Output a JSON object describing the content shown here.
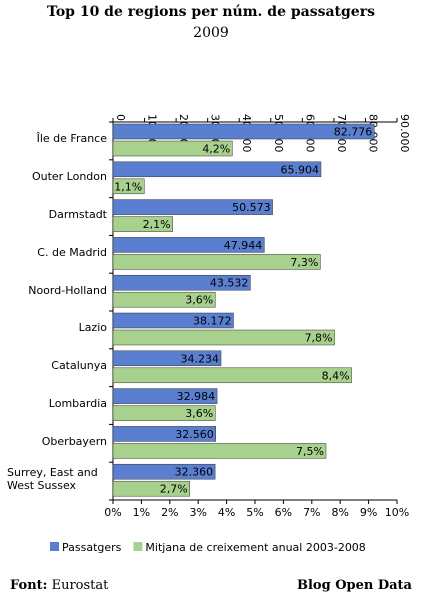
{
  "chart_data": {
    "type": "bar",
    "orientation": "horizontal",
    "title": "Top 10 de regions per núm. de passatgers",
    "subtitle": "2009",
    "categories": [
      "Île de France",
      "Outer London",
      "Darmstadt",
      "C. de Madrid",
      "Noord-Holland",
      "Lazio",
      "Catalunya",
      "Lombardia",
      "Oberbayern",
      "Surrey, East and West Sussex"
    ],
    "series": [
      {
        "name": "Passatgers",
        "color": "#5b7fd0",
        "axis": "x",
        "values": [
          82776,
          65904,
          50573,
          47944,
          43532,
          38172,
          34234,
          32984,
          32560,
          32360
        ],
        "value_labels": [
          "82.776",
          "65.904",
          "50.573",
          "47.944",
          "43.532",
          "38.172",
          "34.234",
          "32.984",
          "32.560",
          "32.360"
        ]
      },
      {
        "name": "Mitjana de creixement anual 2003-2008",
        "color": "#a9d18e",
        "axis": "x2",
        "values": [
          4.2,
          1.1,
          2.1,
          7.3,
          3.6,
          7.8,
          8.4,
          3.6,
          7.5,
          2.7
        ],
        "value_labels": [
          "4,2%",
          "1,1%",
          "2,1%",
          "7,3%",
          "3,6%",
          "7,8%",
          "8,4%",
          "3,6%",
          "7,5%",
          "2,7%"
        ]
      }
    ],
    "xlim": [
      0,
      90000
    ],
    "xticks": [
      0,
      {
        "value": 10000,
        "label": "10.000"
      },
      {
        "value": 20000,
        "label": "20.000"
      },
      {
        "value": 30000,
        "label": "30.000"
      },
      {
        "value": 40000,
        "label": "40.000"
      },
      {
        "value": 50000,
        "label": "50.000"
      },
      {
        "value": 60000,
        "label": "60.000"
      },
      {
        "value": 70000,
        "label": "70.000"
      },
      {
        "value": 80000,
        "label": "80.000"
      },
      {
        "value": 90000,
        "label": "90.000"
      }
    ],
    "x2lim": [
      0,
      10
    ],
    "x2ticks": [
      {
        "value": 0,
        "label": "0%"
      },
      {
        "value": 1,
        "label": "1%"
      },
      {
        "value": 2,
        "label": "2%"
      },
      {
        "value": 3,
        "label": "3%"
      },
      {
        "value": 4,
        "label": "4%"
      },
      {
        "value": 5,
        "label": "5%"
      },
      {
        "value": 6,
        "label": "6%"
      },
      {
        "value": 7,
        "label": "7%"
      },
      {
        "value": 8,
        "label": "8%"
      },
      {
        "value": 9,
        "label": "9%"
      },
      {
        "value": 10,
        "label": "10%"
      }
    ],
    "grid": false,
    "legend": "bottom",
    "source_label": "Font:",
    "source": "Eurostat",
    "credit": "Blog Open Data"
  }
}
